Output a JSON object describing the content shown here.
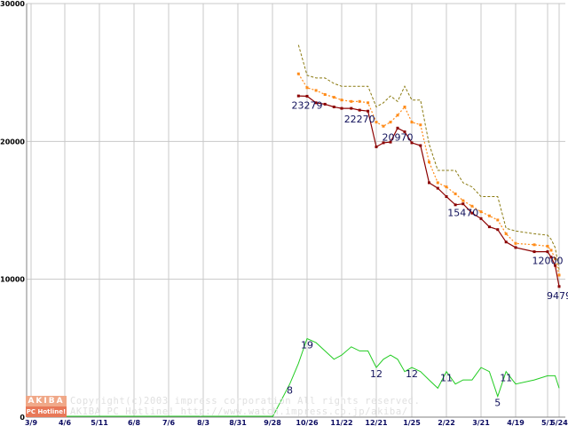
{
  "chart_data": {
    "type": "line",
    "title": "",
    "xlabel": "",
    "ylabel": "",
    "ylim": [
      0,
      30000
    ],
    "y_ticks": [
      0,
      10000,
      20000,
      30000
    ],
    "y_tick_labels": [
      "0",
      "10000",
      "20000",
      "30000"
    ],
    "x_tick_labels": [
      "3/9",
      "4/6",
      "5/11",
      "6/8",
      "7/6",
      "8/3",
      "8/31",
      "9/28",
      "10/26",
      "11/22",
      "12/21",
      "1/25",
      "2/22",
      "3/21",
      "4/19",
      "5/1",
      "5/24"
    ],
    "grid": true,
    "legend": "none",
    "series": [
      {
        "key": "min_price",
        "color": "#8b0000",
        "style": "solid-square-markers",
        "points": [
          [
            "10/19",
            23300
          ],
          [
            "10/26",
            23279
          ],
          [
            "11/2",
            22800
          ],
          [
            "11/9",
            22700
          ],
          [
            "11/16",
            22500
          ],
          [
            "11/22",
            22400
          ],
          [
            "11/30",
            22400
          ],
          [
            "12/7",
            22270
          ],
          [
            "12/14",
            22200
          ],
          [
            "12/21",
            19600
          ],
          [
            "12/28",
            19900
          ],
          [
            "1/4",
            19950
          ],
          [
            "1/11",
            20970
          ],
          [
            "1/18",
            20700
          ],
          [
            "1/25",
            19900
          ],
          [
            "2/1",
            19700
          ],
          [
            "2/8",
            17000
          ],
          [
            "2/15",
            16600
          ],
          [
            "2/22",
            16000
          ],
          [
            "3/1",
            15400
          ],
          [
            "3/7",
            15470
          ],
          [
            "3/14",
            14800
          ],
          [
            "3/21",
            14400
          ],
          [
            "3/28",
            13800
          ],
          [
            "4/4",
            13600
          ],
          [
            "4/11",
            12700
          ],
          [
            "4/19",
            12300
          ],
          [
            "4/26",
            12000
          ],
          [
            "5/1",
            12000
          ],
          [
            "5/8",
            11600
          ],
          [
            "5/16",
            11000
          ],
          [
            "5/24",
            9479
          ]
        ]
      },
      {
        "key": "avg_price",
        "color": "#ff8c1a",
        "style": "dotted-square-markers",
        "points": [
          [
            "10/19",
            24900
          ],
          [
            "10/26",
            23900
          ],
          [
            "11/2",
            23700
          ],
          [
            "11/9",
            23400
          ],
          [
            "11/16",
            23200
          ],
          [
            "11/22",
            23000
          ],
          [
            "11/30",
            22900
          ],
          [
            "12/7",
            22900
          ],
          [
            "12/14",
            22800
          ],
          [
            "12/21",
            21400
          ],
          [
            "12/28",
            21100
          ],
          [
            "1/4",
            21400
          ],
          [
            "1/11",
            21900
          ],
          [
            "1/18",
            22500
          ],
          [
            "1/25",
            21400
          ],
          [
            "2/1",
            21200
          ],
          [
            "2/8",
            18500
          ],
          [
            "2/15",
            17000
          ],
          [
            "2/22",
            16700
          ],
          [
            "3/1",
            16200
          ],
          [
            "3/7",
            15700
          ],
          [
            "3/14",
            15300
          ],
          [
            "3/21",
            14900
          ],
          [
            "3/28",
            14600
          ],
          [
            "4/4",
            14300
          ],
          [
            "4/11",
            13300
          ],
          [
            "4/19",
            12600
          ],
          [
            "4/26",
            12500
          ],
          [
            "5/1",
            12400
          ],
          [
            "5/8",
            12100
          ],
          [
            "5/16",
            11500
          ],
          [
            "5/24",
            10300
          ]
        ]
      },
      {
        "key": "max_price",
        "color": "#8a7a10",
        "style": "dashed",
        "points": [
          [
            "10/19",
            27000
          ],
          [
            "10/26",
            24800
          ],
          [
            "11/2",
            24600
          ],
          [
            "11/9",
            24600
          ],
          [
            "11/16",
            24200
          ],
          [
            "11/22",
            24000
          ],
          [
            "11/30",
            24000
          ],
          [
            "12/7",
            24000
          ],
          [
            "12/14",
            24000
          ],
          [
            "12/21",
            22500
          ],
          [
            "12/28",
            22800
          ],
          [
            "1/4",
            23300
          ],
          [
            "1/11",
            22900
          ],
          [
            "1/18",
            24000
          ],
          [
            "1/25",
            23000
          ],
          [
            "2/1",
            23000
          ],
          [
            "2/8",
            19800
          ],
          [
            "2/15",
            17900
          ],
          [
            "2/22",
            17900
          ],
          [
            "3/1",
            17900
          ],
          [
            "3/7",
            17000
          ],
          [
            "3/14",
            16700
          ],
          [
            "3/21",
            16000
          ],
          [
            "3/28",
            16000
          ],
          [
            "4/4",
            16000
          ],
          [
            "4/11",
            13700
          ],
          [
            "4/19",
            13500
          ],
          [
            "4/26",
            13300
          ],
          [
            "5/1",
            13200
          ],
          [
            "5/8",
            12900
          ],
          [
            "5/16",
            12300
          ],
          [
            "5/24",
            10700
          ]
        ]
      },
      {
        "key": "shop_count",
        "color": "#22cc22",
        "style": "solid",
        "scale_note": "plotted on the same axis at 300 units per shop",
        "points": [
          [
            "10/12",
            8
          ],
          [
            "10/19",
            13
          ],
          [
            "10/26",
            19
          ],
          [
            "11/2",
            18
          ],
          [
            "11/9",
            16
          ],
          [
            "11/16",
            14
          ],
          [
            "11/22",
            15
          ],
          [
            "11/30",
            17
          ],
          [
            "12/7",
            16
          ],
          [
            "12/14",
            16
          ],
          [
            "12/21",
            12
          ],
          [
            "12/28",
            14
          ],
          [
            "1/4",
            15
          ],
          [
            "1/11",
            14
          ],
          [
            "1/18",
            11
          ],
          [
            "1/25",
            12
          ],
          [
            "2/1",
            11
          ],
          [
            "2/8",
            9
          ],
          [
            "2/15",
            7
          ],
          [
            "2/22",
            11
          ],
          [
            "3/1",
            8
          ],
          [
            "3/7",
            9
          ],
          [
            "3/14",
            9
          ],
          [
            "3/21",
            12
          ],
          [
            "3/28",
            11
          ],
          [
            "4/4",
            5
          ],
          [
            "4/11",
            11
          ],
          [
            "4/19",
            8
          ],
          [
            "4/26",
            9
          ],
          [
            "5/1",
            10
          ],
          [
            "5/16",
            10
          ],
          [
            "5/24",
            7
          ]
        ]
      }
    ],
    "annotations": [
      {
        "text": "23279",
        "series": "min_price",
        "at": "10/26"
      },
      {
        "text": "22270",
        "series": "min_price",
        "at": "12/7"
      },
      {
        "text": "20970",
        "series": "min_price",
        "at": "1/11"
      },
      {
        "text": "15470",
        "series": "min_price",
        "at": "3/7"
      },
      {
        "text": "12000",
        "series": "min_price",
        "at": "5/1"
      },
      {
        "text": "9479",
        "series": "min_price",
        "at": "5/24"
      },
      {
        "text": "8",
        "series": "shop_count",
        "at": "10/12"
      },
      {
        "text": "19",
        "series": "shop_count",
        "at": "10/26"
      },
      {
        "text": "12",
        "series": "shop_count",
        "at": "12/21"
      },
      {
        "text": "12",
        "series": "shop_count",
        "at": "1/25"
      },
      {
        "text": "11",
        "series": "shop_count",
        "at": "2/22"
      },
      {
        "text": "5",
        "series": "shop_count",
        "at": "4/4"
      },
      {
        "text": "11",
        "series": "shop_count",
        "at": "4/11"
      }
    ]
  },
  "credit": {
    "logo_top": "AKIBA",
    "logo_bottom": "PC Hotline!",
    "line1": "Copyright(c)2003 impress corporation All rights reserved.",
    "line2": "AKIBA PC Hotline!  http://www.watch.impress.co.jp/akiba/"
  }
}
